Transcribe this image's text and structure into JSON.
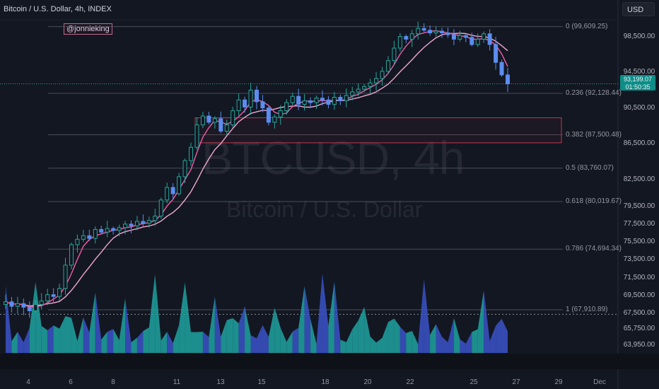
{
  "header": {
    "title": "Bitcoin / U.S. Dollar, 4h, INDEX",
    "currency_button": "USD"
  },
  "handle": "@jonnieking",
  "watermark": {
    "symbol": "BTCUSD, 4h",
    "name": "Bitcoin / U.S. Dollar"
  },
  "price_badge": {
    "price": "93,199.07",
    "countdown": "01:50:35"
  },
  "colors": {
    "background": "#131722",
    "up": "#26a69a",
    "down": "#5b8def",
    "ma_fast": "#ef5da8",
    "ma_slow": "#f1a7d1",
    "box": "#c2344a"
  },
  "chart_data": {
    "type": "candlestick",
    "title": "Bitcoin / U.S. Dollar, 4h, INDEX",
    "timeframe": "4h",
    "y_axis": {
      "min": 63000,
      "max": 101000,
      "ticks": [
        "98,500.00",
        "94,500.00",
        "90,500.00",
        "86,500.00",
        "82,500.00",
        "79,500.00",
        "77,500.00",
        "75,500.00",
        "73,500.00",
        "71,500.00",
        "69,500.00",
        "67,500.00",
        "65,750.00",
        "63,950.00"
      ]
    },
    "x_axis": {
      "ticks": [
        "4",
        "6",
        "8",
        "11",
        "13",
        "15",
        "18",
        "20",
        "22",
        "25",
        "27",
        "29",
        "Dec"
      ]
    },
    "fib_levels": [
      {
        "ratio": "0",
        "price": 99609.25,
        "label": "0 (99,609.25)"
      },
      {
        "ratio": "0.236",
        "price": 92128.44,
        "label": "0.236 (92,128.44)"
      },
      {
        "ratio": "0.382",
        "price": 87500.48,
        "label": "0.382 (87,500.48)"
      },
      {
        "ratio": "0.5",
        "price": 83760.07,
        "label": "0.5 (83,760.07)"
      },
      {
        "ratio": "0.618",
        "price": 80019.67,
        "label": "0.618 (80,019.67)"
      },
      {
        "ratio": "0.786",
        "price": 74694.34,
        "label": "0.786 (74,694.34)"
      },
      {
        "ratio": "1",
        "price": 67910.89,
        "label": "1 (67,910.89)"
      }
    ],
    "last_price": 93199.07,
    "close_series": [
      68800,
      68300,
      68600,
      68200,
      67800,
      68500,
      68900,
      69600,
      69400,
      70300,
      72900,
      75200,
      75800,
      76200,
      75900,
      76900,
      76600,
      77000,
      76800,
      77100,
      77500,
      77300,
      77800,
      77600,
      77900,
      78400,
      80200,
      81600,
      80900,
      82800,
      84600,
      86100,
      88600,
      89600,
      88900,
      89300,
      87900,
      88600,
      90200,
      91400,
      90600,
      92500,
      91200,
      90500,
      88900,
      89500,
      90200,
      91100,
      91800,
      90900,
      91300,
      91100,
      91600,
      91400,
      90900,
      91700,
      91300,
      91900,
      92300,
      92600,
      92900,
      93300,
      93800,
      94600,
      95800,
      97200,
      98500,
      98200,
      98800,
      99400,
      99200,
      98900,
      99100,
      98900,
      98700,
      98200,
      98600,
      98400,
      97600,
      98200,
      98800,
      97600,
      95600,
      94200,
      93199
    ]
  }
}
